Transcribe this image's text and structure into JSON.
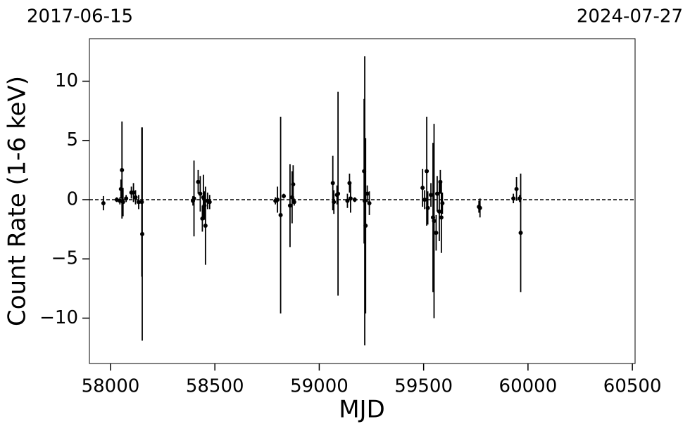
{
  "chart_data": {
    "type": "errorbar",
    "x_label": "MJD",
    "y_label": "Count Rate (1-6 keV)",
    "annotations": [
      "2017-06-15",
      "2024-07-27"
    ],
    "x": [
      57966,
      58030,
      58045,
      58050,
      58055,
      58060,
      58075,
      58100,
      58110,
      58120,
      58135,
      58150,
      58152,
      58395,
      58400,
      58420,
      58430,
      58440,
      58445,
      58450,
      58455,
      58465,
      58475,
      58790,
      58800,
      58815,
      58830,
      58860,
      58870,
      58875,
      58880,
      59065,
      59070,
      59085,
      59090,
      59135,
      59145,
      59150,
      59170,
      59215,
      59218,
      59222,
      59230,
      59240,
      59495,
      59505,
      59515,
      59520,
      59535,
      59545,
      59550,
      59560,
      59565,
      59575,
      59580,
      59585,
      59590,
      59765,
      59770,
      59930,
      59945,
      59960,
      59965
    ],
    "values": [
      -0.3,
      0.0,
      -0.1,
      0.9,
      2.5,
      -0.2,
      0.1,
      0.6,
      0.6,
      0.2,
      -0.2,
      -0.2,
      -2.9,
      -0.1,
      0.1,
      1.5,
      0.5,
      -1.6,
      0.2,
      -0.5,
      -2.2,
      -0.1,
      -0.2,
      -0.1,
      0.0,
      -1.3,
      0.3,
      -0.5,
      0.2,
      1.3,
      -0.2,
      1.4,
      -0.2,
      0.4,
      0.5,
      -0.1,
      1.4,
      0.1,
      0.0,
      2.4,
      -0.1,
      -2.2,
      0.5,
      -0.3,
      1.0,
      0.0,
      2.4,
      -0.7,
      0.4,
      -1.5,
      -1.8,
      -2.8,
      0.5,
      -1.0,
      1.5,
      -1.5,
      -0.3,
      -0.6,
      -0.7,
      0.1,
      0.9,
      0.1,
      -2.8
    ],
    "errors": [
      0.6,
      0.2,
      0.3,
      0.8,
      4.1,
      1.2,
      0.3,
      0.5,
      0.8,
      0.6,
      0.6,
      6.3,
      9.0,
      0.4,
      3.2,
      1.0,
      1.5,
      1.1,
      1.9,
      1.2,
      3.3,
      0.7,
      0.6,
      0.3,
      1.1,
      8.3,
      0.2,
      3.5,
      2.2,
      1.6,
      0.3,
      2.3,
      1.0,
      0.8,
      8.6,
      0.6,
      0.8,
      1.2,
      0.2,
      6.1,
      12.2,
      7.4,
      0.7,
      1.0,
      1.6,
      0.8,
      4.6,
      1.4,
      1.0,
      6.3,
      8.2,
      1.5,
      1.5,
      2.5,
      1.0,
      3.0,
      0.9,
      0.5,
      0.8,
      0.4,
      1.0,
      0.3,
      5.0
    ],
    "color": "#000000",
    "hline": 0,
    "xlim": [
      57899,
      60513
    ],
    "ylim": [
      -13.83,
      13.59
    ],
    "xticks": [
      58000,
      58500,
      59000,
      59500,
      60000,
      60500
    ],
    "yticks": [
      {
        "value": -10,
        "label": "−10"
      },
      {
        "value": -5,
        "label": "−5"
      },
      0,
      5,
      10
    ]
  }
}
